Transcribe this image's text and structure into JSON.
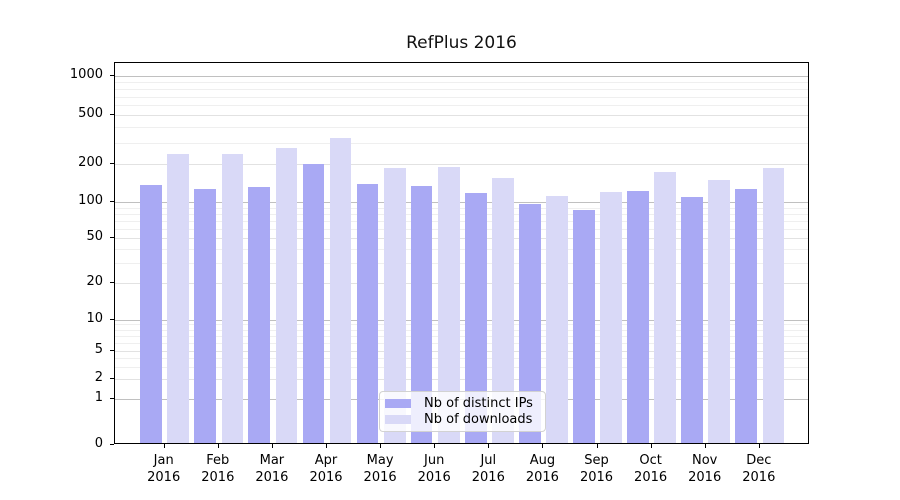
{
  "title": "RefPlus 2016",
  "colors": {
    "distinct_ips": "#a9a9f4",
    "downloads": "#d9d9f7",
    "grid_decade": "#c0c0c0",
    "grid_minor": "#efefef",
    "axis": "#000000"
  },
  "legend": {
    "items": [
      {
        "label": "Nb of distinct IPs",
        "color": "#a9a9f4"
      },
      {
        "label": "Nb of downloads",
        "color": "#d9d9f7"
      }
    ]
  },
  "chart_data": {
    "type": "bar",
    "title": "RefPlus 2016",
    "categories": [
      "Jan",
      "Feb",
      "Mar",
      "Apr",
      "May",
      "Jun",
      "Jul",
      "Aug",
      "Sep",
      "Oct",
      "Nov",
      "Dec"
    ],
    "year": "2016",
    "series": [
      {
        "name": "Nb of distinct IPs",
        "color": "#a9a9f4",
        "values": [
          131,
          123,
          127,
          195,
          135,
          130,
          113,
          92,
          82,
          119,
          105,
          122
        ]
      },
      {
        "name": "Nb of downloads",
        "color": "#d9d9f7",
        "values": [
          235,
          235,
          264,
          316,
          181,
          185,
          150,
          107,
          115,
          168,
          145,
          181
        ]
      }
    ],
    "xlabel": "",
    "ylabel": "",
    "yscale": "symlog",
    "yticks": [
      0,
      1,
      2,
      5,
      10,
      20,
      50,
      100,
      200,
      500,
      1000
    ],
    "ytick_labels": [
      "0",
      "1",
      "2",
      "5",
      "10",
      "20",
      "50",
      "100",
      "200",
      "500",
      "1000"
    ],
    "ylim": [
      0,
      1300
    ],
    "grid": true,
    "legend_position": "lower center"
  }
}
